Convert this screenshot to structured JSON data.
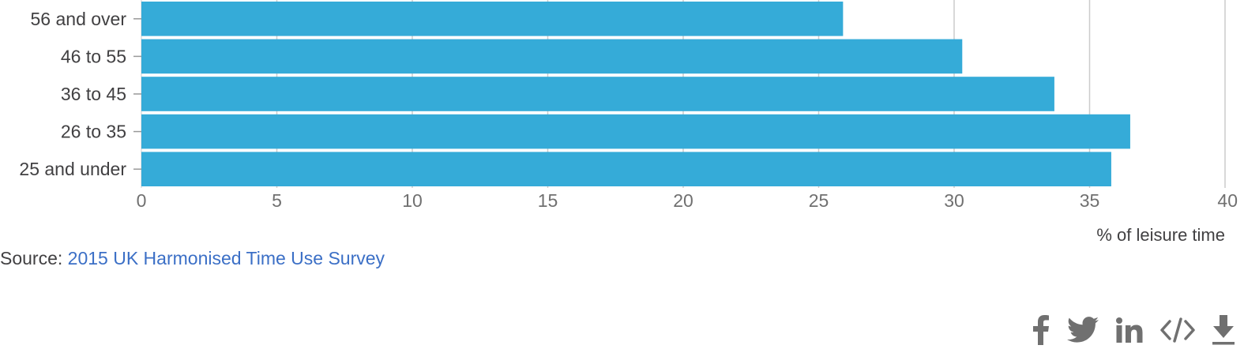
{
  "chart_data": {
    "type": "bar",
    "orientation": "horizontal",
    "categories": [
      "56 and over",
      "46 to 55",
      "36 to 45",
      "26 to 35",
      "25 and under"
    ],
    "values": [
      25.9,
      30.3,
      33.7,
      36.5,
      35.8
    ],
    "xlabel": "% of leisure time",
    "ylabel": "",
    "xlim": [
      0,
      40
    ],
    "x_ticks": [
      0,
      5,
      10,
      15,
      20,
      25,
      30,
      35,
      40
    ],
    "grid": true,
    "bar_color": "#35abd8",
    "grid_color": "#cccccc"
  },
  "source": {
    "prefix": "Source: ",
    "link_text": "2015 UK Harmonised Time Use Survey"
  },
  "share": {
    "icons": [
      "facebook-icon",
      "twitter-icon",
      "linkedin-icon",
      "embed-code-icon",
      "download-icon"
    ],
    "icon_color": "#707070"
  }
}
